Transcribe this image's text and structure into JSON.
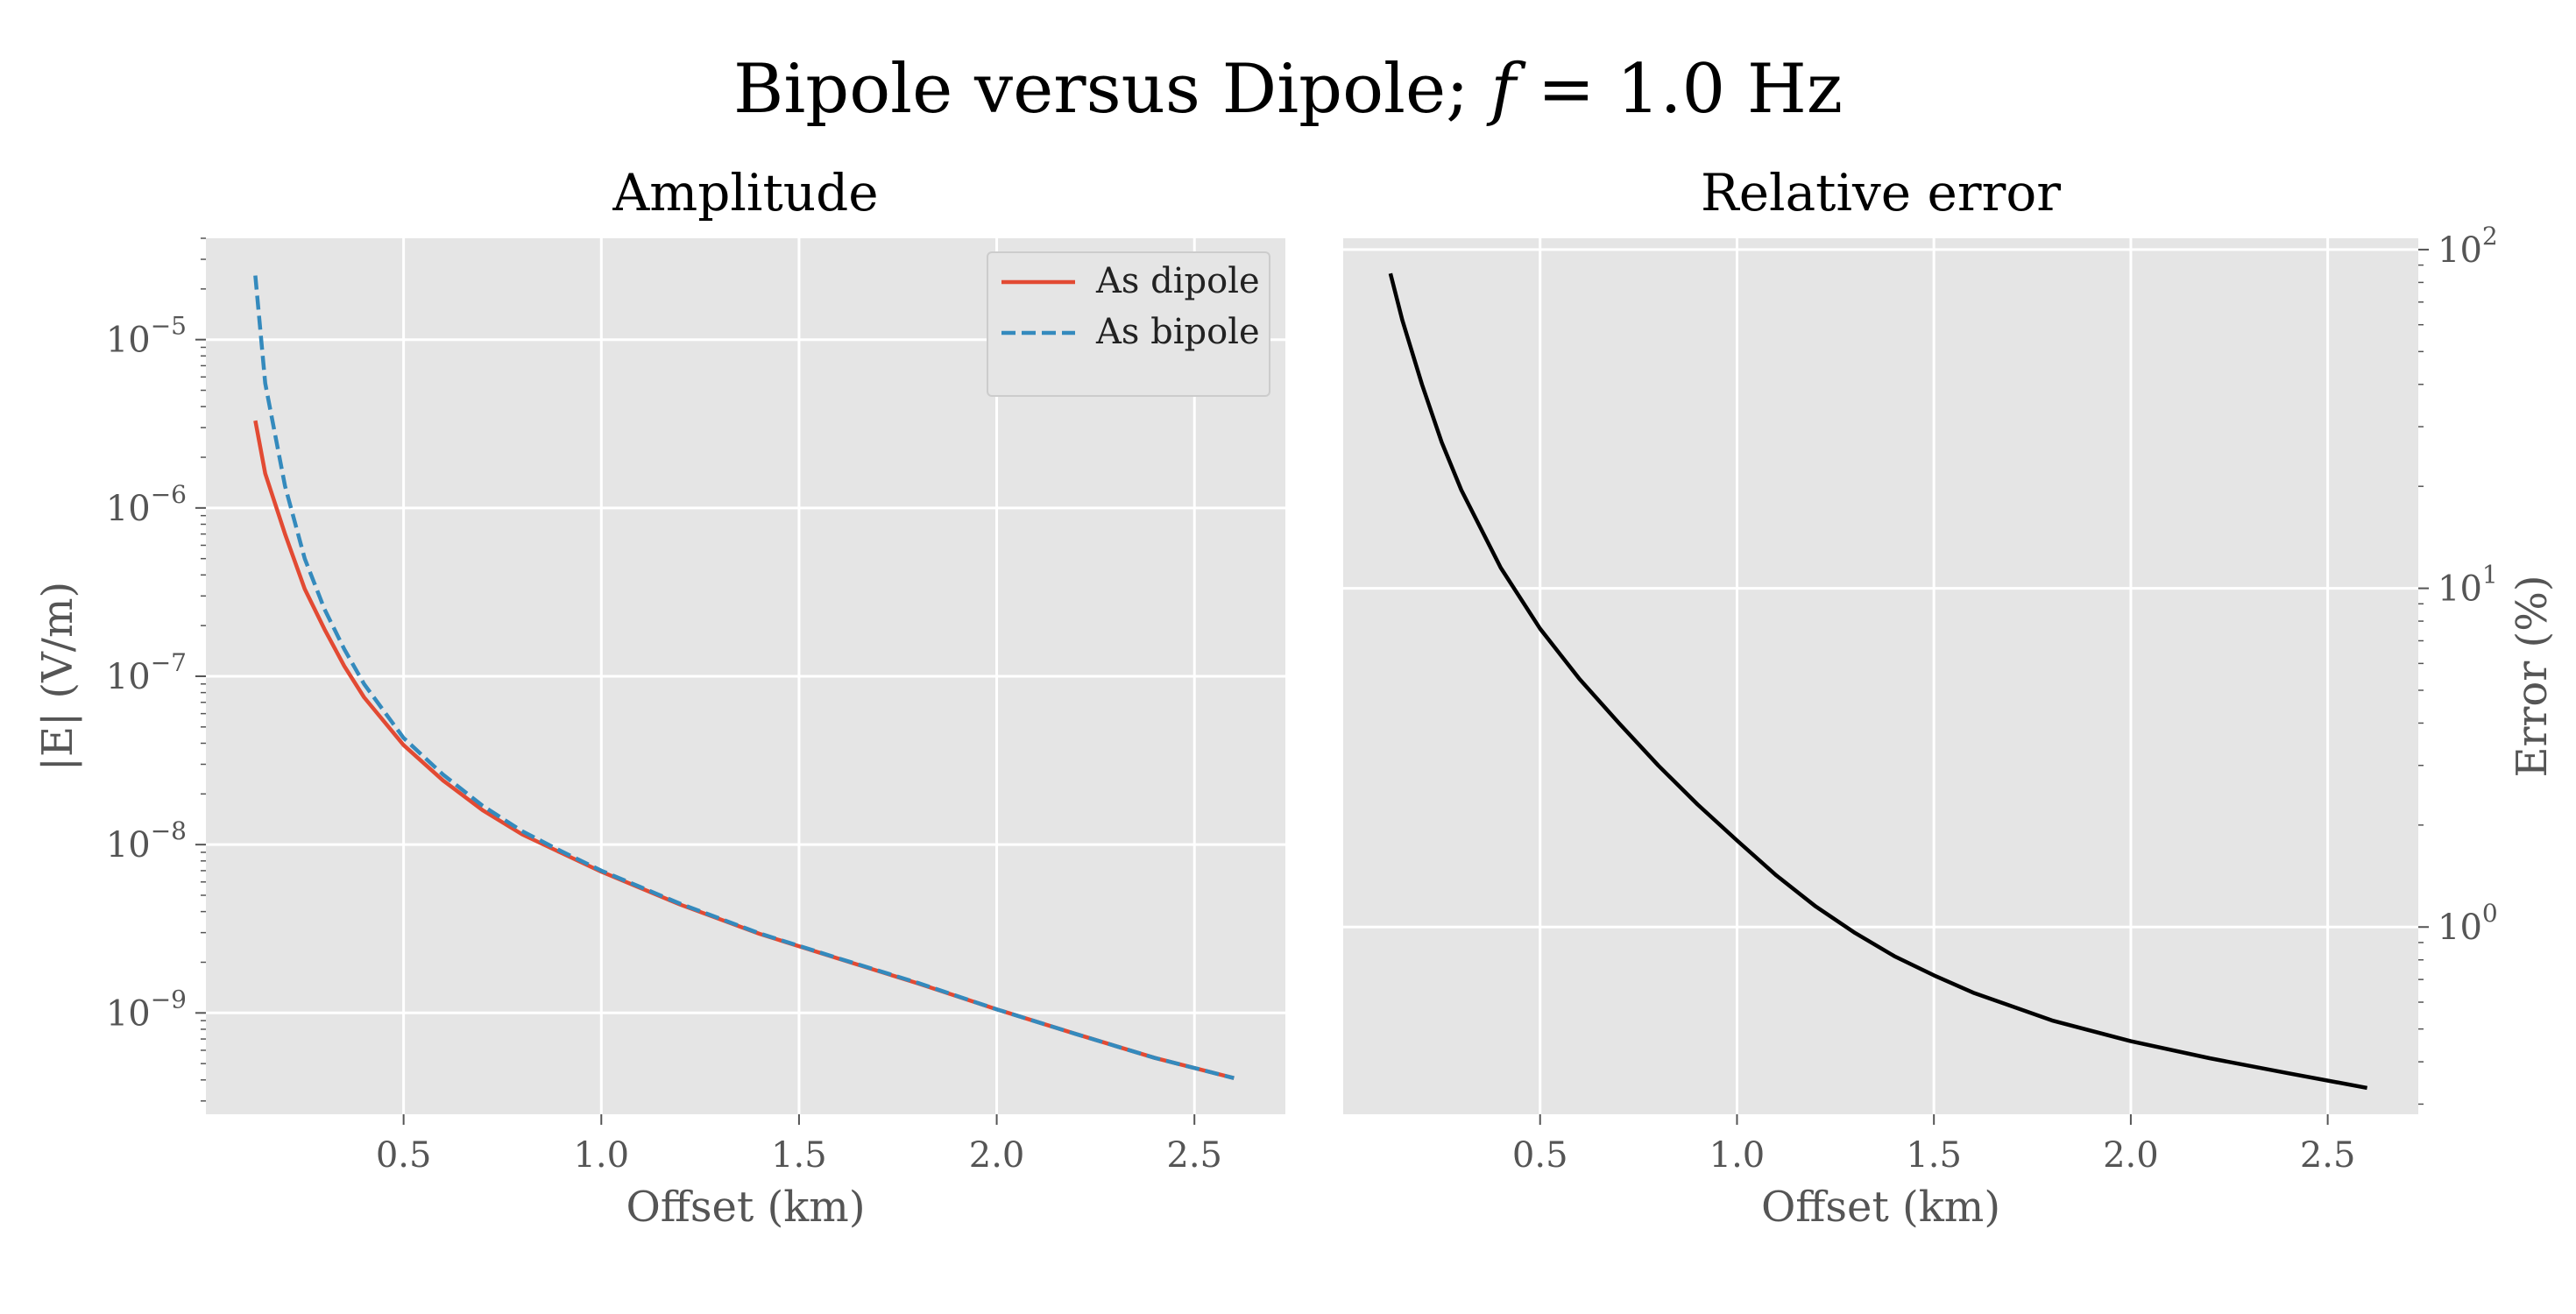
{
  "figure": {
    "title": "Bipole versus Dipole; f = 1.0 Hz",
    "title_parts": [
      "Bipole versus Dipole; ",
      "f",
      " = 1.0 Hz"
    ],
    "background": "#ffffff",
    "axes_background": "#e5e5e5",
    "grid_color": "#ffffff"
  },
  "chart_data": [
    {
      "type": "line",
      "title": "Amplitude",
      "xlabel": "Offset (km)",
      "ylabel": "|E| (V/m)",
      "xlim": [
        0.0,
        2.73
      ],
      "ylim": [
        2.5e-10,
        4e-05
      ],
      "yscale": "log",
      "grid": true,
      "legend": "top-right",
      "xticks": [
        0.5,
        1.0,
        1.5,
        2.0,
        2.5
      ],
      "xtick_labels": [
        "0.5",
        "1.0",
        "1.5",
        "2.0",
        "2.5"
      ],
      "yticks": [
        1e-09,
        1e-08,
        1e-07,
        1e-06,
        1e-05
      ],
      "ytick_labels": [
        {
          "base": "10",
          "exp": "−9"
        },
        {
          "base": "10",
          "exp": "−8"
        },
        {
          "base": "10",
          "exp": "−7"
        },
        {
          "base": "10",
          "exp": "−6"
        },
        {
          "base": "10",
          "exp": "−5"
        }
      ],
      "series": [
        {
          "name": "As dipole",
          "color": "#e24a33",
          "dash": "solid",
          "x": [
            0.125,
            0.15,
            0.2,
            0.25,
            0.3,
            0.35,
            0.4,
            0.5,
            0.6,
            0.7,
            0.8,
            0.9,
            1.0,
            1.2,
            1.4,
            1.6,
            1.8,
            2.0,
            2.2,
            2.4,
            2.6
          ],
          "y": [
            3.3e-06,
            1.6e-06,
            7e-07,
            3.3e-07,
            1.9e-07,
            1.15e-07,
            7.5e-08,
            3.9e-08,
            2.4e-08,
            1.6e-08,
            1.15e-08,
            8.9e-09,
            6.9e-09,
            4.4e-09,
            2.95e-09,
            2.1e-09,
            1.5e-09,
            1.05e-09,
            7.5e-10,
            5.4e-10,
            4.1e-10
          ]
        },
        {
          "name": "As bipole",
          "color": "#348abd",
          "dash": "dashed",
          "x": [
            0.125,
            0.15,
            0.2,
            0.25,
            0.3,
            0.35,
            0.4,
            0.5,
            0.6,
            0.7,
            0.8,
            0.9,
            1.0,
            1.2,
            1.4,
            1.6,
            1.8,
            2.0,
            2.2,
            2.4,
            2.6
          ],
          "y": [
            2.4e-05,
            5.5e-06,
            1.35e-06,
            5e-07,
            2.5e-07,
            1.45e-07,
            9e-08,
            4.3e-08,
            2.6e-08,
            1.7e-08,
            1.2e-08,
            9.1e-09,
            7e-09,
            4.45e-09,
            2.97e-09,
            2.11e-09,
            1.51e-09,
            1.05e-09,
            7.5e-10,
            5.4e-10,
            4.1e-10
          ]
        }
      ]
    },
    {
      "type": "line",
      "title": "Relative error",
      "xlabel": "Offset (km)",
      "ylabel": "Error (%)",
      "xlim": [
        0.0,
        2.73
      ],
      "ylim": [
        0.28,
        108
      ],
      "yscale": "log",
      "yaxis_side": "right",
      "grid": true,
      "xticks": [
        0.5,
        1.0,
        1.5,
        2.0,
        2.5
      ],
      "xtick_labels": [
        "0.5",
        "1.0",
        "1.5",
        "2.0",
        "2.5"
      ],
      "yticks": [
        1,
        10,
        100
      ],
      "ytick_labels": [
        {
          "base": "10",
          "exp": "0"
        },
        {
          "base": "10",
          "exp": "1"
        },
        {
          "base": "10",
          "exp": "2"
        }
      ],
      "series": [
        {
          "color": "#000000",
          "dash": "solid",
          "x": [
            0.12,
            0.15,
            0.2,
            0.25,
            0.3,
            0.4,
            0.5,
            0.6,
            0.7,
            0.8,
            0.9,
            1.0,
            1.1,
            1.2,
            1.3,
            1.4,
            1.5,
            1.6,
            1.8,
            2.0,
            2.2,
            2.4,
            2.6
          ],
          "y": [
            85,
            62,
            40,
            27,
            19.5,
            11.5,
            7.6,
            5.4,
            4.0,
            3.0,
            2.3,
            1.8,
            1.42,
            1.15,
            0.96,
            0.82,
            0.72,
            0.64,
            0.53,
            0.46,
            0.41,
            0.37,
            0.335
          ]
        }
      ]
    }
  ]
}
